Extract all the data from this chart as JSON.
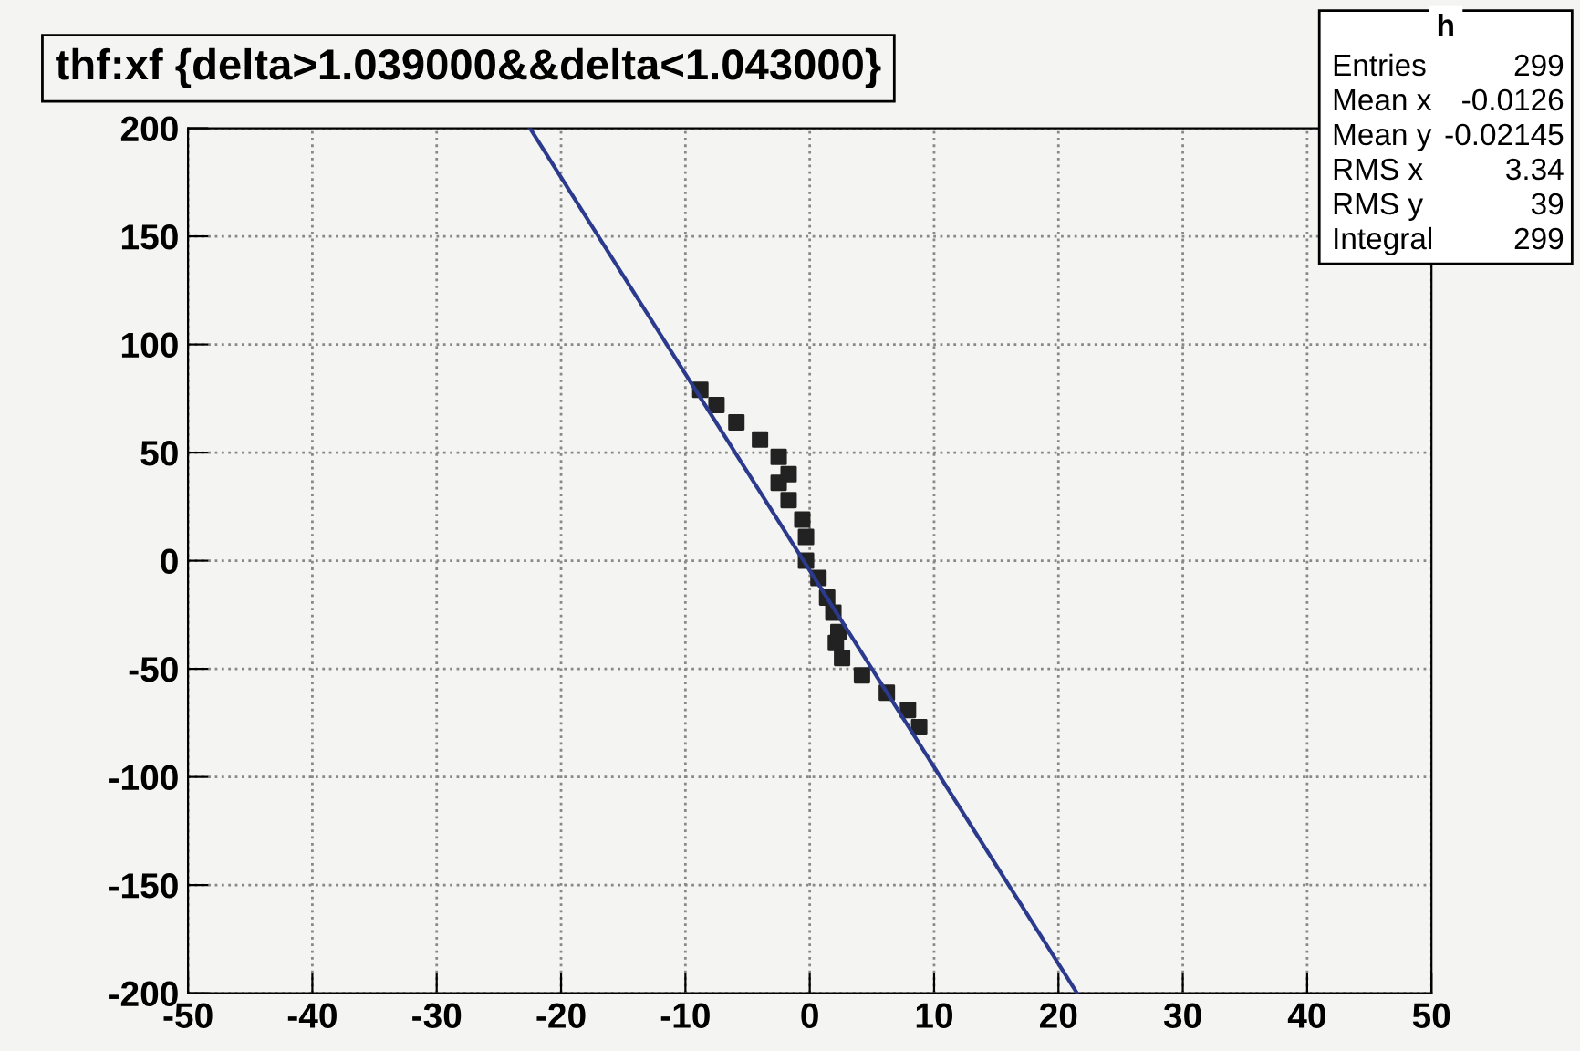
{
  "chart_data": {
    "type": "scatter",
    "title": "thf:xf {delta>1.039000&&delta<1.043000}",
    "xlim": [
      -50,
      50
    ],
    "xticks": [
      -50,
      -40,
      -30,
      -20,
      -10,
      0,
      10,
      20,
      30,
      40,
      50
    ],
    "ylim": [
      -200,
      200
    ],
    "yticks": [
      -200,
      -150,
      -100,
      -50,
      0,
      50,
      100,
      150,
      200
    ],
    "grid": true,
    "series": [
      {
        "marker": "square",
        "color": "#222222",
        "x": [
          -8.8,
          -7.5,
          -5.9,
          -4.0,
          -2.5,
          -1.7,
          -2.5,
          -1.7,
          -0.6,
          -0.3,
          -0.3,
          0.7,
          1.4,
          1.9,
          2.3,
          2.1,
          2.6,
          4.2,
          6.2,
          7.9,
          8.8
        ],
        "values": [
          79,
          72,
          64,
          56,
          48,
          40,
          36,
          28,
          19,
          11,
          0,
          -8,
          -17,
          -24,
          -33,
          -38,
          -45,
          -53,
          -61,
          -69,
          -77
        ]
      },
      {
        "type": "line",
        "color": "#2b3a8c",
        "x": [
          -22.5,
          21.5
        ],
        "values": [
          200,
          -200
        ]
      }
    ],
    "annotations": [
      "h",
      "Entries",
      "299",
      "Mean x",
      "-0.0126",
      "Mean y",
      "-0.02145",
      "RMS x",
      "3.34",
      "RMS y",
      "39",
      "Integral",
      "299"
    ]
  }
}
